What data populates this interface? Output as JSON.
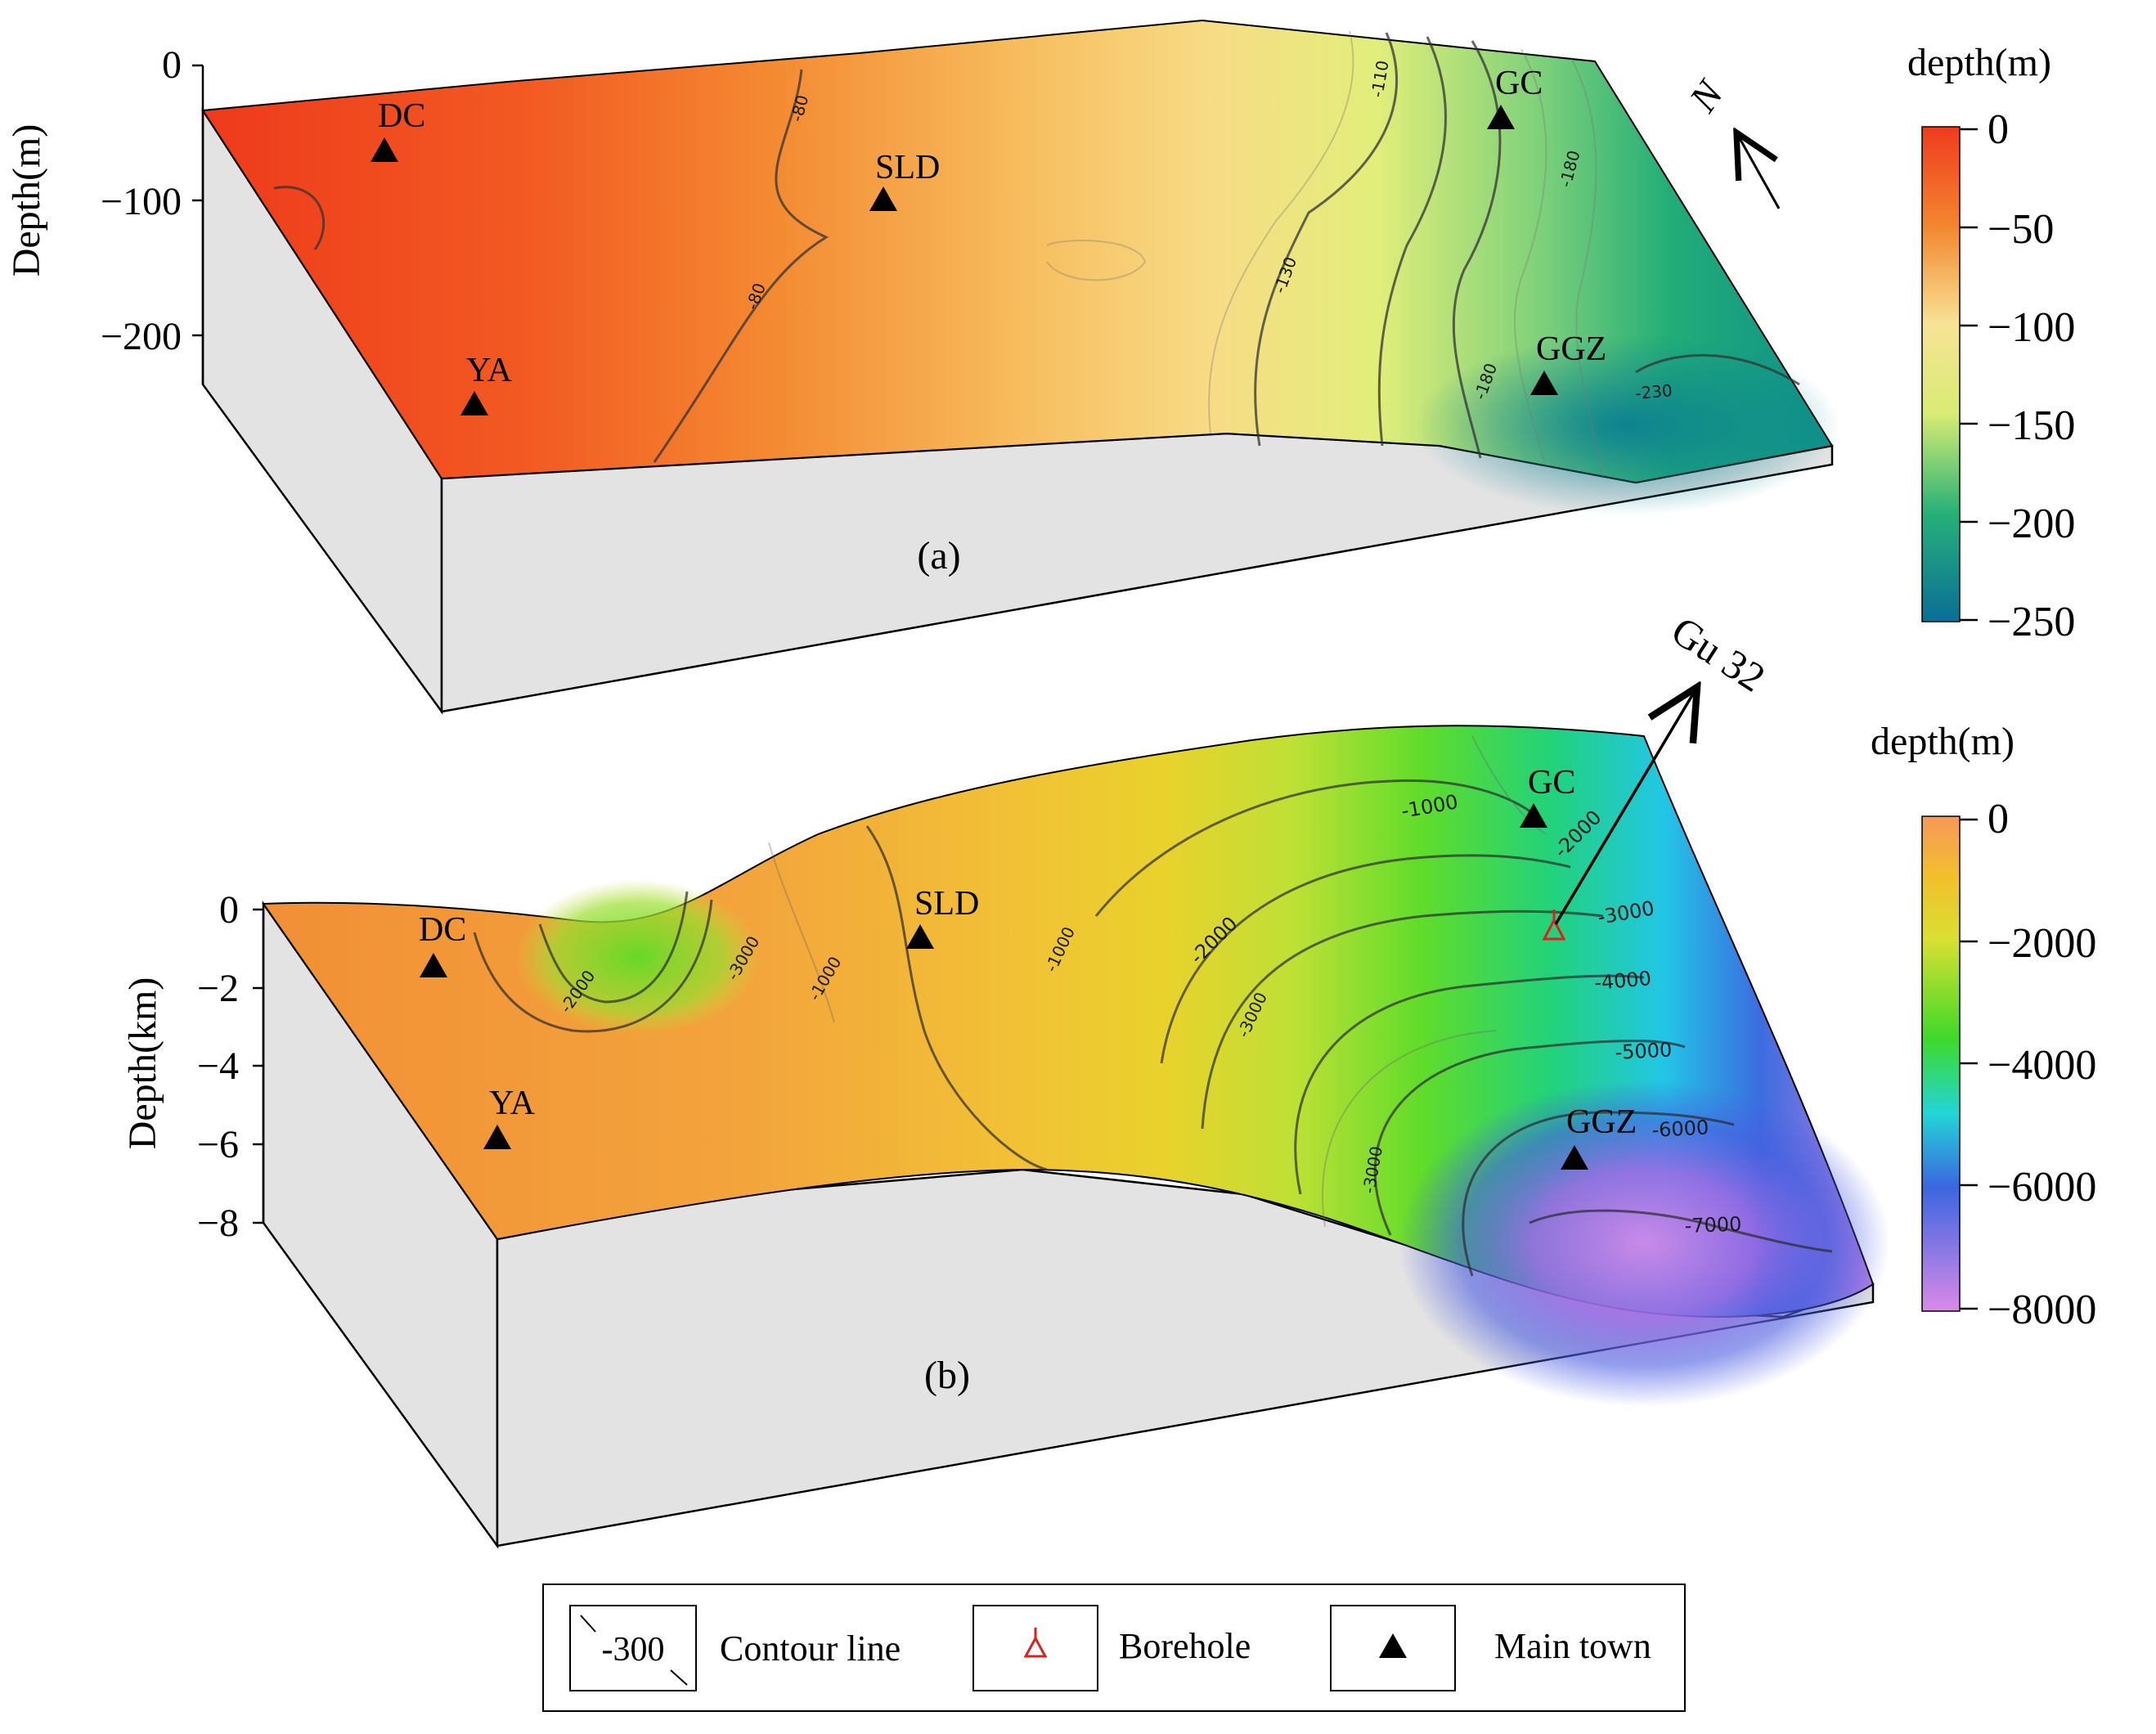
{
  "panel_a": {
    "label": "(a)",
    "axis_title": "Depth(m)",
    "axis_ticks": [
      "0",
      "−100",
      "−200"
    ],
    "towns": [
      "DC",
      "SLD",
      "GC",
      "YA",
      "GGZ"
    ],
    "contour_labels": [
      "-80",
      "-80",
      "-110",
      "-130",
      "-180",
      "-180",
      "-230"
    ],
    "colorbar_title": "depth(m)",
    "colorbar_ticks": [
      "0",
      "−50",
      "−100",
      "−150",
      "−200",
      "−250"
    ],
    "colors": [
      "#ef3b1d",
      "#f39a3a",
      "#f7e48f",
      "#e8f07a",
      "#1fae78",
      "#0a7e95"
    ]
  },
  "panel_b": {
    "label": "(b)",
    "axis_title": "Depth(km)",
    "axis_ticks": [
      "0",
      "−2",
      "−4",
      "−6",
      "−8"
    ],
    "towns": [
      "GC",
      "DC",
      "SLD",
      "YA",
      "GGZ"
    ],
    "contour_labels": [
      "-1000",
      "-2000",
      "-3000",
      "-2000",
      "-3000",
      "-1000",
      "-2000",
      "-1000",
      "-3000",
      "-3000",
      "-4000",
      "-5000",
      "-6000",
      "-7000"
    ],
    "borehole_label": "Gu 32",
    "colorbar_title": "depth(m)",
    "colorbar_ticks": [
      "0",
      "−2000",
      "−4000",
      "−6000",
      "−8000"
    ],
    "colors": [
      "#f4a246",
      "#f0cf2a",
      "#5fe02a",
      "#22d4e8",
      "#3d63e0",
      "#d58de6"
    ]
  },
  "compass": {
    "label": "N"
  },
  "legend": {
    "contour_sample": "-300",
    "contour_text": "Contour line",
    "borehole_text": "Borehole",
    "town_text": "Main town"
  }
}
